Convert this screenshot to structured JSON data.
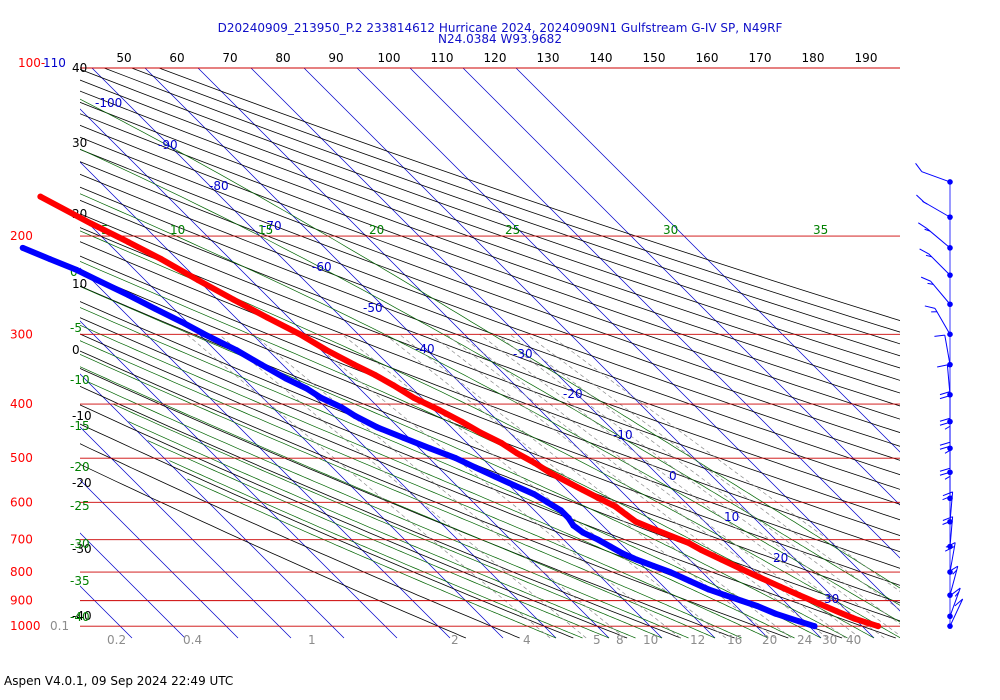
{
  "chart_data": {
    "type": "line",
    "title_line1": "D20240909_213950_P.2 233814612 Hurricane 2024, 20240909N1 Gulfstream G-IV SP, N49RF",
    "title_line2": "N24.0384 W93.9682",
    "footer": "Aspen V4.0.1, 09 Sep 2024  22:49 UTC",
    "pressure_label_first": "100-",
    "pressure_label_first_alt": "110",
    "pressure_labels": [
      "100",
      "200",
      "300",
      "400",
      "500",
      "600",
      "700",
      "800",
      "900",
      "1000"
    ],
    "pressure_levels": [
      100,
      200,
      300,
      400,
      500,
      600,
      700,
      800,
      900,
      1000
    ],
    "temp_f_labels": [
      "50",
      "60",
      "70",
      "80",
      "90",
      "100",
      "110",
      "120",
      "130",
      "140",
      "150",
      "160",
      "170",
      "180",
      "190"
    ],
    "altitude_labels": [
      "40",
      "30",
      "20",
      "10",
      "0",
      "-10",
      "-20",
      "-30",
      "-40"
    ],
    "theta_labels": [
      "-100",
      "-90",
      "-80",
      "-70",
      "-60",
      "-50",
      "-40",
      "-30",
      "-20",
      "-10",
      "0",
      "10",
      "20",
      "30"
    ],
    "mixing_ratio_labels": [
      "0.1",
      "0.2",
      "0.4",
      "1",
      "2",
      "4",
      "5",
      "8",
      "10",
      "12",
      "16",
      "20",
      "24",
      "30",
      "40"
    ],
    "theta_e_labels": [
      "5",
      "10",
      "15",
      "20",
      "25",
      "30",
      "35"
    ],
    "left_green_labels": [
      "0",
      "-5",
      "-10",
      "-15",
      "-20",
      "-25",
      "-30",
      "-35",
      "-40"
    ],
    "series": [
      {
        "color": "#ff0000",
        "pressure": [
          170,
          190,
          205,
          220,
          240,
          260,
          280,
          300,
          320,
          340,
          355,
          370,
          390,
          410,
          430,
          450,
          470,
          490,
          510,
          530,
          550,
          570,
          590,
          610,
          630,
          650,
          670,
          690,
          710,
          730,
          760,
          790,
          820,
          850,
          880,
          910,
          940,
          970,
          1000
        ],
        "values": [
          -54,
          -49.5,
          -46,
          -43,
          -40,
          -37,
          -34,
          -31,
          -29,
          -26.5,
          -24.5,
          -23,
          -21.5,
          -19,
          -17,
          -15.5,
          -13.5,
          -12.5,
          -11,
          -10,
          -8.5,
          -7,
          -5.5,
          -4,
          -3.5,
          -3,
          -1,
          1,
          3,
          4,
          6,
          8,
          10,
          12,
          14,
          16,
          18,
          20,
          23
        ]
      },
      {
        "color": "#0000ff",
        "pressure": [
          210,
          220,
          230,
          240,
          255,
          270,
          285,
          300,
          320,
          340,
          360,
          375,
          390,
          405,
          420,
          440,
          460,
          480,
          500,
          520,
          540,
          560,
          580,
          600,
          620,
          640,
          660,
          680,
          700,
          720,
          740,
          760,
          780,
          800,
          830,
          860,
          880,
          900,
          920,
          950,
          980,
          1000
        ],
        "values": [
          -67,
          -64,
          -61,
          -59,
          -56,
          -53.5,
          -51,
          -49,
          -46,
          -44,
          -42,
          -40,
          -39,
          -37,
          -36,
          -34,
          -31,
          -28,
          -25,
          -23,
          -21,
          -19,
          -17,
          -16,
          -15,
          -15,
          -15.5,
          -15,
          -13.5,
          -12.5,
          -11.5,
          -10,
          -8,
          -6,
          -4,
          -2,
          0,
          2,
          4,
          6,
          9,
          11
        ]
      }
    ],
    "wind_barbs": [
      {
        "p": 160,
        "speed": 10,
        "dir": 250
      },
      {
        "p": 185,
        "speed": 15,
        "dir": 240
      },
      {
        "p": 210,
        "speed": 15,
        "dir": 230
      },
      {
        "p": 235,
        "speed": 15,
        "dir": 225
      },
      {
        "p": 265,
        "speed": 15,
        "dir": 220
      },
      {
        "p": 300,
        "speed": 15,
        "dir": 210
      },
      {
        "p": 340,
        "speed": 10,
        "dir": 190
      },
      {
        "p": 385,
        "speed": 10,
        "dir": 185
      },
      {
        "p": 430,
        "speed": 20,
        "dir": 180
      },
      {
        "p": 480,
        "speed": 25,
        "dir": 180
      },
      {
        "p": 530,
        "speed": 25,
        "dir": 180
      },
      {
        "p": 590,
        "speed": 25,
        "dir": 180
      },
      {
        "p": 650,
        "speed": 20,
        "dir": 175
      },
      {
        "p": 720,
        "speed": 20,
        "dir": 175
      },
      {
        "p": 800,
        "speed": 20,
        "dir": 170
      },
      {
        "p": 880,
        "speed": 15,
        "dir": 165
      },
      {
        "p": 960,
        "speed": 15,
        "dir": 160
      },
      {
        "p": 1000,
        "speed": 10,
        "dir": 155
      }
    ],
    "colors": {
      "isobar": "#cc0000",
      "isotherm": "#0000cc",
      "dry_adiabat": "#000000",
      "moist_adiabat": "#006400",
      "mixing_ratio": "#8c8c8c",
      "pressure_label": "#ff0000",
      "theta_label": "#0000cc",
      "green_label": "#008000"
    },
    "grid": true,
    "legend": "none"
  }
}
